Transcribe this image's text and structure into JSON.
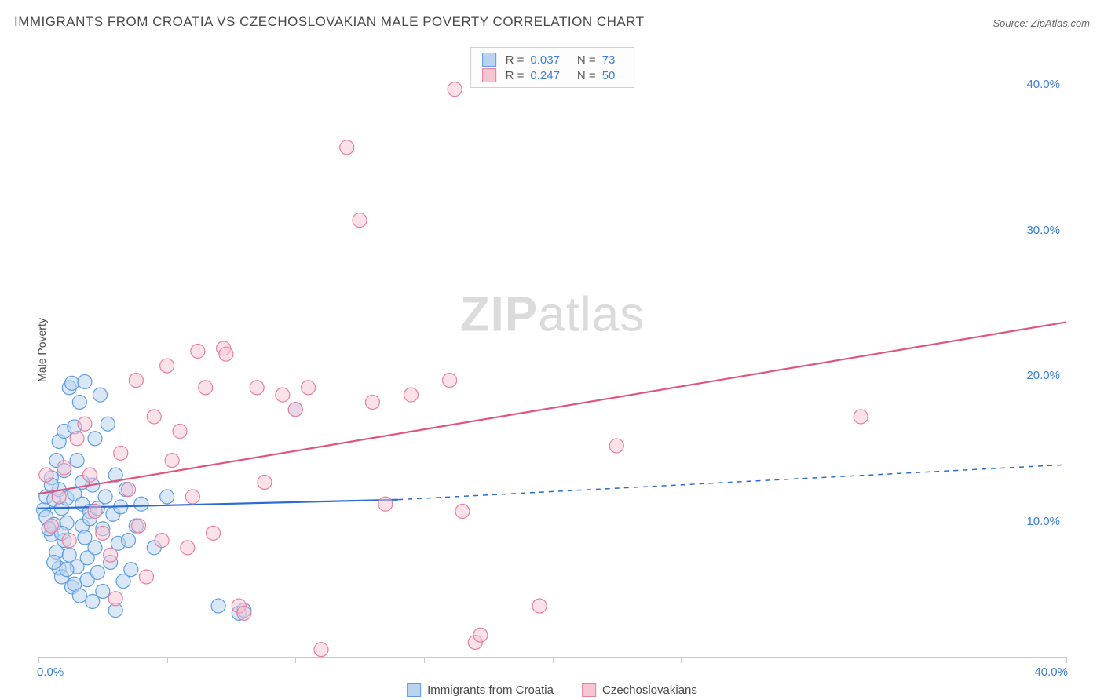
{
  "title": "IMMIGRANTS FROM CROATIA VS CZECHOSLOVAKIAN MALE POVERTY CORRELATION CHART",
  "source": "Source: ZipAtlas.com",
  "ylabel": "Male Poverty",
  "watermark": {
    "prefix": "ZIP",
    "suffix": "atlas"
  },
  "chart": {
    "type": "scatter",
    "xlim": [
      0,
      40
    ],
    "ylim": [
      0,
      42
    ],
    "x_ticks": [
      0,
      5,
      10,
      15,
      20,
      25,
      30,
      35,
      40
    ],
    "x_tick_labels": {
      "0": "0.0%",
      "40": "40.0%"
    },
    "y_gridlines": [
      10,
      20,
      30,
      40
    ],
    "y_tick_labels": {
      "10": "10.0%",
      "20": "20.0%",
      "30": "30.0%",
      "40": "40.0%"
    },
    "background_color": "#ffffff",
    "grid_color": "#d9d9d9",
    "axis_color": "#c8c8c8",
    "label_color": "#3b7dd8",
    "marker_radius": 9,
    "marker_stroke_width": 1.2,
    "line_width": 2.2
  },
  "series": [
    {
      "key": "croatia",
      "label": "Immigrants from Croatia",
      "fill": "#b9d3f0",
      "stroke": "#5e9de6",
      "fill_opacity": 0.55,
      "line_color": "#2b6cd4",
      "stats": {
        "R": "0.037",
        "N": "73"
      },
      "trend": {
        "x0": 0,
        "y0": 10.2,
        "x1_solid": 14,
        "y1_solid": 10.8,
        "x1": 40,
        "y1": 13.2,
        "dash_after_solid": true
      },
      "points": [
        [
          0.2,
          10.1
        ],
        [
          0.3,
          9.6
        ],
        [
          0.3,
          11.0
        ],
        [
          0.5,
          12.3
        ],
        [
          0.5,
          8.4
        ],
        [
          0.6,
          10.8
        ],
        [
          0.6,
          9.1
        ],
        [
          0.7,
          13.5
        ],
        [
          0.7,
          7.2
        ],
        [
          0.8,
          14.8
        ],
        [
          0.8,
          6.1
        ],
        [
          0.8,
          11.5
        ],
        [
          0.9,
          10.2
        ],
        [
          0.9,
          5.5
        ],
        [
          1.0,
          12.8
        ],
        [
          1.0,
          8.0
        ],
        [
          1.0,
          15.5
        ],
        [
          1.1,
          9.2
        ],
        [
          1.1,
          10.9
        ],
        [
          1.2,
          18.5
        ],
        [
          1.2,
          7.0
        ],
        [
          1.3,
          18.8
        ],
        [
          1.3,
          4.8
        ],
        [
          1.4,
          11.2
        ],
        [
          1.4,
          5.0
        ],
        [
          1.5,
          6.2
        ],
        [
          1.5,
          13.5
        ],
        [
          1.6,
          17.5
        ],
        [
          1.6,
          4.2
        ],
        [
          1.7,
          9.0
        ],
        [
          1.7,
          10.5
        ],
        [
          1.8,
          8.2
        ],
        [
          1.8,
          18.9
        ],
        [
          1.9,
          6.8
        ],
        [
          1.9,
          5.3
        ],
        [
          2.0,
          10.0
        ],
        [
          2.0,
          9.5
        ],
        [
          2.1,
          11.8
        ],
        [
          2.1,
          3.8
        ],
        [
          2.2,
          7.5
        ],
        [
          2.2,
          15.0
        ],
        [
          2.3,
          5.8
        ],
        [
          2.3,
          10.2
        ],
        [
          2.4,
          18.0
        ],
        [
          2.5,
          8.8
        ],
        [
          2.5,
          4.5
        ],
        [
          2.6,
          11.0
        ],
        [
          2.7,
          16.0
        ],
        [
          2.8,
          6.5
        ],
        [
          2.9,
          9.8
        ],
        [
          3.0,
          12.5
        ],
        [
          3.0,
          3.2
        ],
        [
          3.1,
          7.8
        ],
        [
          3.2,
          10.3
        ],
        [
          3.3,
          5.2
        ],
        [
          3.4,
          11.5
        ],
        [
          3.5,
          8.0
        ],
        [
          3.6,
          6.0
        ],
        [
          3.8,
          9.0
        ],
        [
          4.0,
          10.5
        ],
        [
          4.5,
          7.5
        ],
        [
          5.0,
          11.0
        ],
        [
          7.0,
          3.5
        ],
        [
          7.8,
          3.0
        ],
        [
          8.0,
          3.2
        ],
        [
          10.0,
          17.0
        ],
        [
          0.4,
          8.8
        ],
        [
          0.5,
          11.8
        ],
        [
          0.6,
          6.5
        ],
        [
          0.9,
          8.5
        ],
        [
          1.1,
          6.0
        ],
        [
          1.4,
          15.8
        ],
        [
          1.7,
          12.0
        ]
      ]
    },
    {
      "key": "czech",
      "label": "Czechoslovakians",
      "fill": "#f7c6d1",
      "stroke": "#e87ea0",
      "fill_opacity": 0.5,
      "line_color": "#e0557e",
      "stats": {
        "R": "0.247",
        "N": "50"
      },
      "trend": {
        "x0": 0,
        "y0": 11.2,
        "x1": 40,
        "y1": 23.0,
        "dash_after_solid": false
      },
      "points": [
        [
          0.3,
          12.5
        ],
        [
          0.5,
          9.0
        ],
        [
          0.8,
          11.0
        ],
        [
          1.2,
          8.0
        ],
        [
          1.5,
          15.0
        ],
        [
          1.8,
          16.0
        ],
        [
          2.0,
          12.5
        ],
        [
          2.2,
          10.0
        ],
        [
          2.5,
          8.5
        ],
        [
          2.8,
          7.0
        ],
        [
          3.2,
          14.0
        ],
        [
          3.5,
          11.5
        ],
        [
          3.8,
          19.0
        ],
        [
          3.9,
          9.0
        ],
        [
          4.5,
          16.5
        ],
        [
          4.8,
          8.0
        ],
        [
          5.0,
          20.0
        ],
        [
          5.2,
          13.5
        ],
        [
          5.5,
          15.5
        ],
        [
          6.0,
          11.0
        ],
        [
          6.2,
          21.0
        ],
        [
          6.5,
          18.5
        ],
        [
          7.2,
          21.2
        ],
        [
          7.3,
          20.8
        ],
        [
          7.8,
          3.5
        ],
        [
          8.0,
          3.0
        ],
        [
          8.5,
          18.5
        ],
        [
          8.8,
          12.0
        ],
        [
          9.5,
          18.0
        ],
        [
          10.0,
          17.0
        ],
        [
          10.5,
          18.5
        ],
        [
          11.0,
          0.5
        ],
        [
          12.0,
          35.0
        ],
        [
          12.5,
          30.0
        ],
        [
          13.0,
          17.5
        ],
        [
          13.5,
          10.5
        ],
        [
          14.5,
          18.0
        ],
        [
          16.0,
          19.0
        ],
        [
          16.2,
          39.0
        ],
        [
          16.5,
          10.0
        ],
        [
          17.0,
          1.0
        ],
        [
          17.2,
          1.5
        ],
        [
          19.5,
          3.5
        ],
        [
          22.5,
          14.5
        ],
        [
          4.2,
          5.5
        ],
        [
          6.8,
          8.5
        ],
        [
          3.0,
          4.0
        ],
        [
          1.0,
          13.0
        ],
        [
          32.0,
          16.5
        ],
        [
          5.8,
          7.5
        ]
      ]
    }
  ],
  "stats_labels": {
    "R": "R =",
    "N": "N ="
  },
  "bottom_legend": [
    {
      "series": "croatia"
    },
    {
      "series": "czech"
    }
  ]
}
